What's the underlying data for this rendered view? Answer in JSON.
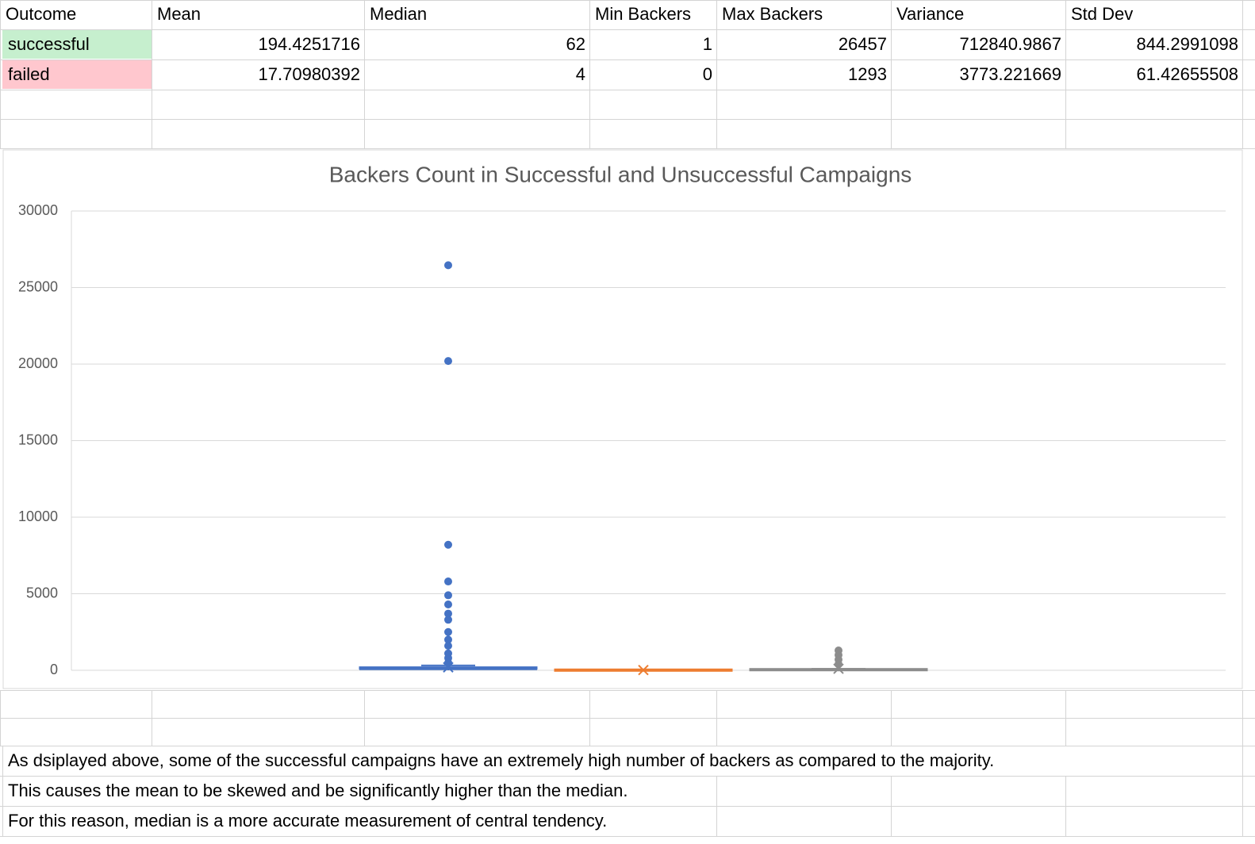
{
  "table": {
    "header": [
      "Outcome",
      "Mean",
      "Median",
      "Min Backers",
      "Max Backers",
      "Variance",
      "Std Dev"
    ],
    "rows": [
      [
        "successful",
        194.4251716,
        62,
        1,
        26457,
        712840.9867,
        844.2991098
      ],
      [
        "failed",
        17.70980392,
        4,
        0,
        1293,
        3773.221669,
        61.42655508
      ]
    ]
  },
  "chart_data": {
    "type": "box",
    "title": "Backers Count in Successful and Unsuccessful Campaigns",
    "ylim": [
      0,
      30000
    ],
    "yticks": [
      0,
      5000,
      10000,
      15000,
      20000,
      25000,
      30000
    ],
    "grid": true,
    "series": [
      {
        "color": "#4472c4",
        "whisker_low": 1,
        "q1": 30,
        "median": 62,
        "q3": 150,
        "whisker_high": 320,
        "mean": 194.4,
        "outliers": [
          26457,
          20200,
          8200,
          5800,
          4900,
          4300,
          3700,
          3300,
          2500,
          2000,
          1600,
          1100,
          800,
          500
        ]
      },
      {
        "color": "#ed7d31",
        "whisker_low": 0,
        "q1": 0,
        "median": 0,
        "q3": 10,
        "whisker_high": 20,
        "mean": 18,
        "outliers": []
      },
      {
        "color": "#8c8c8c",
        "whisker_low": 0,
        "q1": 2,
        "median": 10,
        "q3": 40,
        "whisker_high": 100,
        "mean": 100,
        "outliers": [
          1293,
          1000,
          700,
          400
        ]
      }
    ]
  },
  "notes": [
    "As dsiplayed above, some of the successful campaigns have an extremely high number of backers as compared to the majority.",
    "This causes the mean to be skewed and be significantly higher than the median.",
    "For this reason, median is a more accurate measurement of central tendency."
  ]
}
